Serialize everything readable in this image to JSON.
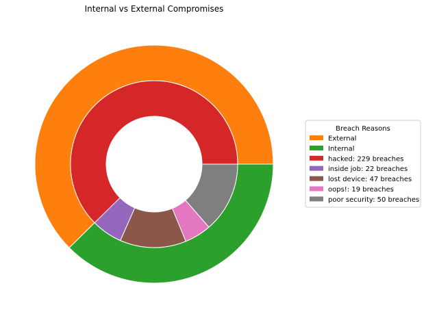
{
  "chart_data": {
    "type": "pie",
    "title": "Internal vs External Compromises",
    "legend_title": "Breach Reasons",
    "legend_position": "center-right",
    "outer_ring": {
      "categories": [
        "External",
        "Internal"
      ],
      "values": [
        229,
        138
      ],
      "colors": [
        "#ff7f0e",
        "#2ca02c"
      ]
    },
    "inner_ring": {
      "categories": [
        "hacked: 229 breaches",
        "inside job: 22 breaches",
        "lost device: 47 breaches",
        "oops!: 19 breaches",
        "poor security: 50 breaches"
      ],
      "values": [
        229,
        22,
        47,
        19,
        50
      ],
      "colors": [
        "#d62728",
        "#9467bd",
        "#8c564b",
        "#e377c2",
        "#7f7f7f"
      ]
    }
  }
}
